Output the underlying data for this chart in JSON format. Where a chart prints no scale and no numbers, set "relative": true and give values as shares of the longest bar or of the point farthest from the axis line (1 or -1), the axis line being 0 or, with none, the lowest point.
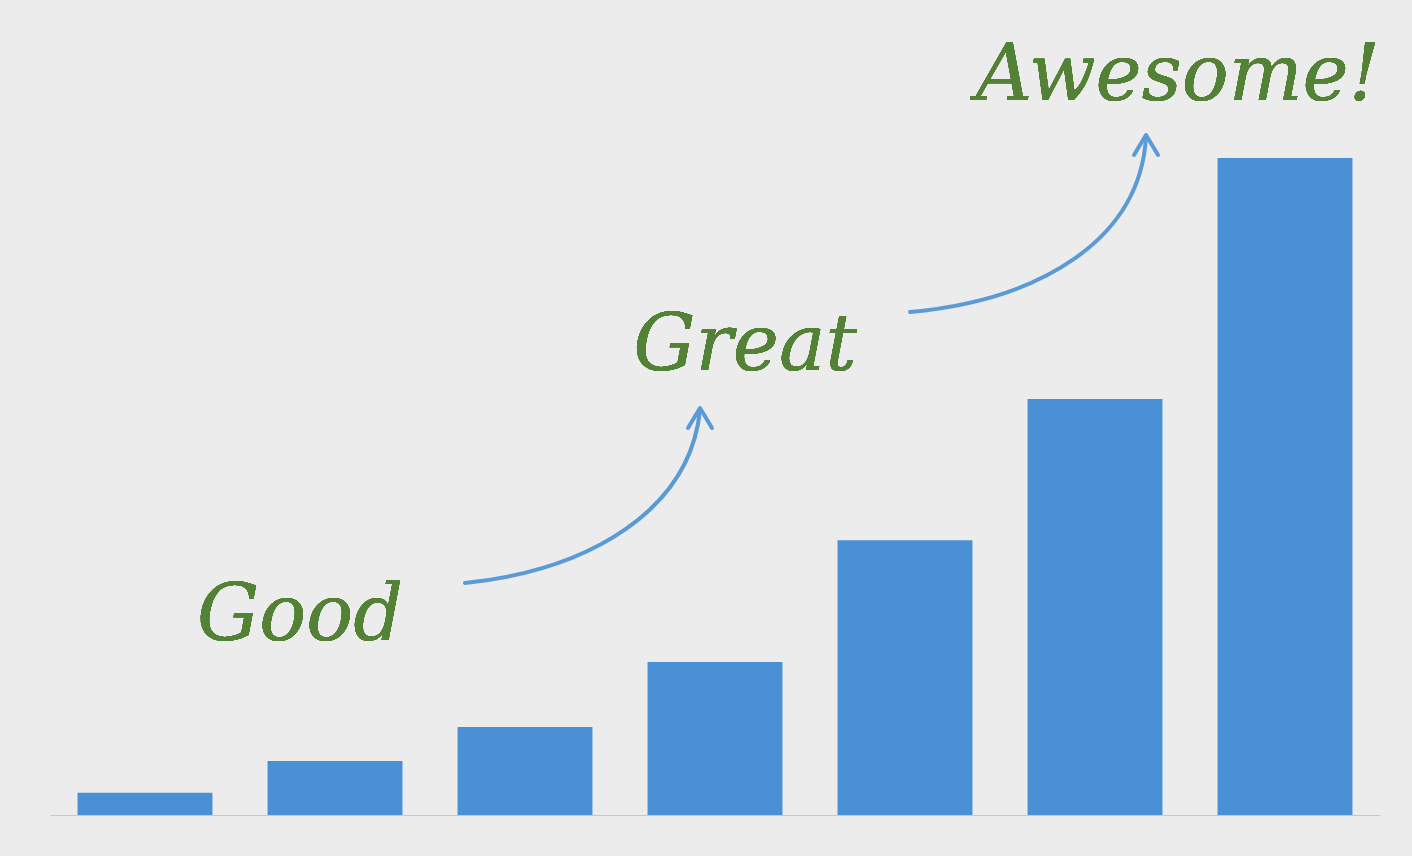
{
  "chart_data": {
    "type": "bar",
    "relative": true,
    "categories": [
      null,
      null,
      null,
      null,
      null,
      null,
      null
    ],
    "values": [
      0.034,
      0.082,
      0.134,
      0.233,
      0.418,
      0.633,
      1
    ],
    "color": "#4a90d4",
    "annotations": [
      "Good",
      "Great",
      "Awesome!"
    ]
  }
}
